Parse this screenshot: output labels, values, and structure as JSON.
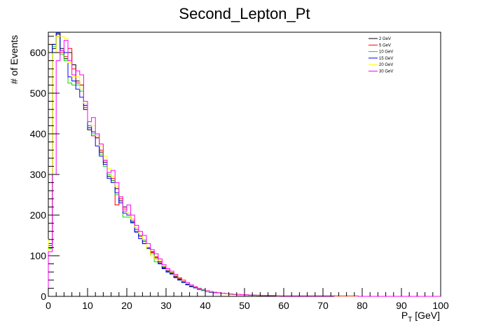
{
  "chart_data": {
    "type": "line",
    "title": "Second_Lepton_Pt",
    "ylabel": "# of Events",
    "xlabel_main": "P",
    "xlabel_sub": "T",
    "xlabel_unit": " [GeV]",
    "xlim": [
      0,
      100
    ],
    "ylim": [
      0,
      650
    ],
    "bin_width": 1,
    "x_ticks": [
      0,
      10,
      20,
      30,
      40,
      50,
      60,
      70,
      80,
      90,
      100
    ],
    "y_ticks": [
      0,
      100,
      200,
      300,
      400,
      500,
      600
    ],
    "legend_placement": "top-right",
    "grid": false,
    "series": [
      {
        "name": "2 GeV",
        "color": "#000000",
        "values": [
          120,
          610,
          645,
          610,
          585,
          600,
          570,
          530,
          520,
          460,
          410,
          400,
          390,
          355,
          330,
          295,
          285,
          265,
          235,
          220,
          200,
          185,
          160,
          150,
          130,
          120,
          110,
          95,
          85,
          70,
          62,
          58,
          48,
          42,
          36,
          30,
          25,
          22,
          18,
          15,
          13,
          11,
          10,
          8,
          7,
          6,
          5,
          5,
          4,
          4,
          3,
          3,
          3,
          2,
          2,
          2,
          2,
          2,
          1,
          1,
          1,
          1,
          1,
          1,
          1,
          1,
          1,
          1,
          1,
          1,
          1,
          1,
          1,
          0,
          0,
          0,
          0,
          0,
          0,
          0,
          0,
          0,
          0,
          0,
          0,
          0,
          0,
          0,
          0,
          0,
          0,
          0,
          0,
          0,
          0,
          0,
          0,
          0,
          0,
          0
        ]
      },
      {
        "name": "5 GeV",
        "color": "#ff0000",
        "values": [
          125,
          620,
          640,
          600,
          590,
          610,
          560,
          525,
          520,
          465,
          420,
          395,
          395,
          360,
          335,
          300,
          290,
          225,
          240,
          215,
          205,
          190,
          165,
          148,
          135,
          118,
          108,
          98,
          82,
          72,
          65,
          56,
          50,
          44,
          38,
          31,
          27,
          22,
          19,
          16,
          13,
          11,
          9,
          8,
          7,
          6,
          5,
          5,
          4,
          4,
          3,
          3,
          3,
          2,
          2,
          2,
          2,
          2,
          1,
          1,
          1,
          1,
          1,
          1,
          1,
          1,
          1,
          1,
          1,
          1,
          1,
          1,
          1,
          0,
          0,
          0,
          0,
          0,
          0,
          0,
          0,
          0,
          0,
          0,
          0,
          0,
          0,
          0,
          0,
          0,
          0,
          0,
          0,
          0,
          0,
          0,
          0,
          0,
          0,
          0
        ]
      },
      {
        "name": "10 GeV",
        "color": "#00dd00",
        "values": [
          118,
          615,
          640,
          595,
          580,
          525,
          520,
          520,
          505,
          470,
          420,
          400,
          400,
          350,
          320,
          300,
          285,
          250,
          245,
          195,
          195,
          180,
          160,
          150,
          138,
          120,
          105,
          85,
          88,
          74,
          60,
          55,
          47,
          40,
          35,
          28,
          24,
          21,
          17,
          14,
          12,
          10,
          9,
          8,
          7,
          6,
          5,
          5,
          4,
          4,
          3,
          3,
          3,
          2,
          2,
          2,
          2,
          2,
          1,
          1,
          1,
          1,
          1,
          1,
          1,
          1,
          1,
          1,
          1,
          1,
          1,
          1,
          1,
          0,
          0,
          0,
          0,
          0,
          0,
          0,
          0,
          0,
          0,
          0,
          0,
          0,
          0,
          0,
          0,
          0,
          0,
          0,
          0,
          0,
          0,
          0,
          0,
          0,
          0,
          0
        ]
      },
      {
        "name": "15 GeV",
        "color": "#0000ff",
        "values": [
          130,
          620,
          648,
          605,
          600,
          540,
          530,
          510,
          490,
          470,
          415,
          405,
          370,
          345,
          325,
          290,
          280,
          255,
          230,
          205,
          200,
          182,
          158,
          142,
          130,
          118,
          100,
          92,
          80,
          68,
          60,
          55,
          46,
          40,
          34,
          29,
          24,
          21,
          17,
          15,
          12,
          10,
          9,
          8,
          7,
          6,
          5,
          5,
          4,
          4,
          3,
          3,
          3,
          2,
          2,
          2,
          2,
          2,
          1,
          1,
          1,
          1,
          1,
          1,
          1,
          1,
          1,
          1,
          1,
          1,
          1,
          1,
          1,
          0,
          0,
          0,
          0,
          0,
          0,
          0,
          0,
          0,
          0,
          0,
          0,
          0,
          0,
          0,
          0,
          0,
          0,
          0,
          0,
          0,
          0,
          0,
          0,
          0,
          0,
          0
        ]
      },
      {
        "name": "20 GeV",
        "color": "#ffff00",
        "values": [
          140,
          600,
          640,
          640,
          635,
          575,
          540,
          540,
          510,
          475,
          430,
          420,
          395,
          370,
          345,
          315,
          295,
          270,
          245,
          210,
          205,
          190,
          170,
          155,
          140,
          115,
          100,
          92,
          88,
          75,
          66,
          60,
          52,
          45,
          38,
          32,
          27,
          23,
          19,
          16,
          13,
          11,
          10,
          8,
          7,
          6,
          5,
          5,
          4,
          4,
          3,
          3,
          3,
          2,
          2,
          2,
          2,
          2,
          1,
          1,
          1,
          1,
          1,
          1,
          1,
          1,
          1,
          1,
          1,
          1,
          1,
          1,
          1,
          0,
          0,
          0,
          0,
          0,
          0,
          0,
          0,
          0,
          0,
          0,
          0,
          0,
          0,
          0,
          0,
          0,
          0,
          0,
          0,
          0,
          0,
          0,
          0,
          0,
          0,
          0
        ]
      },
      {
        "name": "30 GeV",
        "color": "#ff00ff",
        "values": [
          110,
          300,
          580,
          605,
          630,
          580,
          545,
          555,
          545,
          480,
          430,
          440,
          400,
          375,
          335,
          305,
          310,
          280,
          245,
          210,
          225,
          200,
          175,
          160,
          150,
          130,
          115,
          105,
          92,
          78,
          68,
          62,
          54,
          46,
          40,
          34,
          28,
          24,
          20,
          17,
          14,
          12,
          10,
          9,
          8,
          7,
          6,
          5,
          5,
          4,
          4,
          3,
          3,
          3,
          2,
          2,
          2,
          2,
          2,
          1,
          1,
          1,
          1,
          1,
          1,
          1,
          1,
          1,
          1,
          1,
          1,
          1,
          1,
          1,
          1,
          1,
          1,
          1,
          1,
          0,
          0,
          0,
          0,
          0,
          0,
          0,
          0,
          0,
          0,
          0,
          0,
          0,
          0,
          0,
          0,
          0,
          0,
          0,
          0,
          0
        ]
      }
    ]
  }
}
